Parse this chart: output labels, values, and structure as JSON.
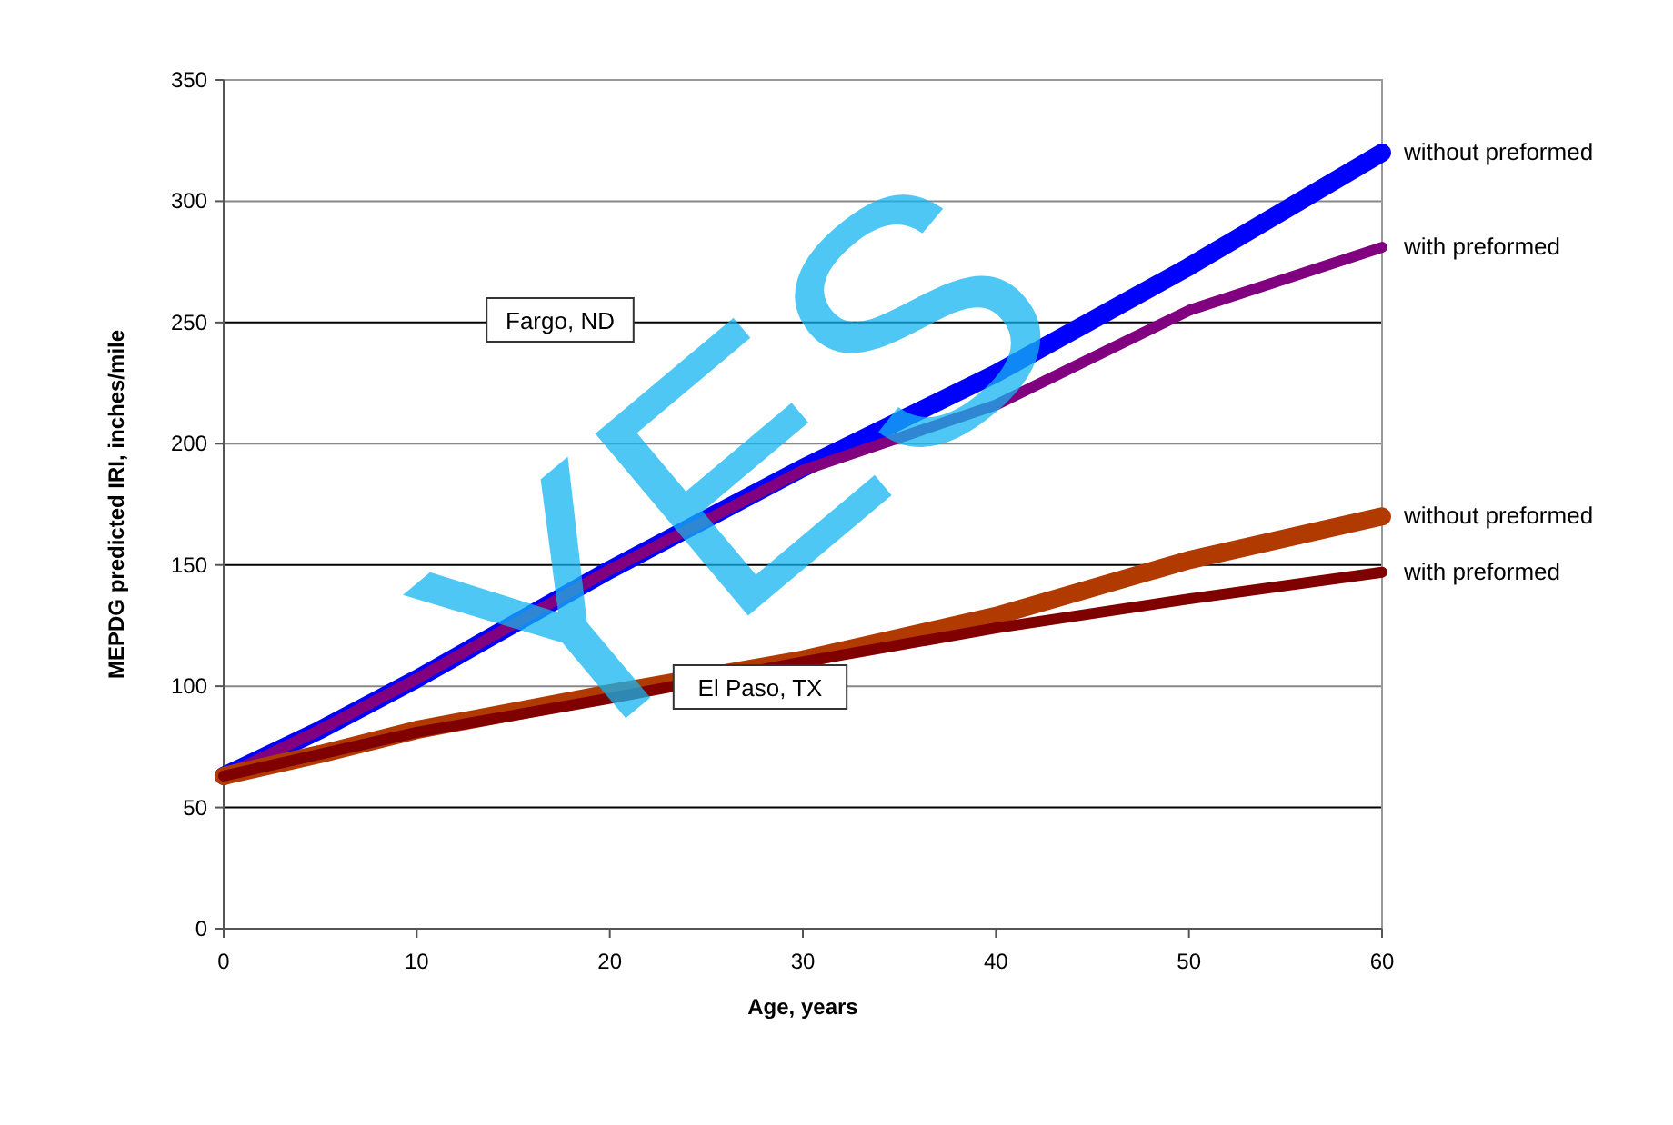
{
  "chart_data": {
    "type": "line",
    "xlabel": "Age, years",
    "ylabel": "MEPDG predicted IRI, inches/mile",
    "x": [
      0,
      5,
      10,
      20,
      30,
      40,
      50,
      60
    ],
    "series": [
      {
        "name": "without preformed",
        "color": "#0000ff",
        "values": [
          63,
          82,
          103,
          148,
          190,
          229,
          273,
          320
        ]
      },
      {
        "name": "with preformed",
        "color": "#800080",
        "values": [
          63,
          82,
          103,
          148,
          189,
          216,
          255,
          281
        ]
      },
      {
        "name": "without preformed",
        "color": "#b03a00",
        "values": [
          63,
          72,
          82,
          97,
          111,
          129,
          152,
          170
        ]
      },
      {
        "name": "with preformed",
        "color": "#800000",
        "values": [
          63,
          72,
          81,
          95,
          110,
          124,
          136,
          147
        ]
      }
    ],
    "xlim": [
      0,
      60
    ],
    "xticks": [
      0,
      10,
      20,
      30,
      40,
      50,
      60
    ],
    "ylim": [
      0,
      350
    ],
    "yticks": [
      0,
      50,
      100,
      150,
      200,
      250,
      300,
      350
    ],
    "grid": "y",
    "marker": "none",
    "line_style": "solid",
    "annotations": [
      "Fargo, ND",
      "El Paso, TX",
      "YES"
    ]
  }
}
